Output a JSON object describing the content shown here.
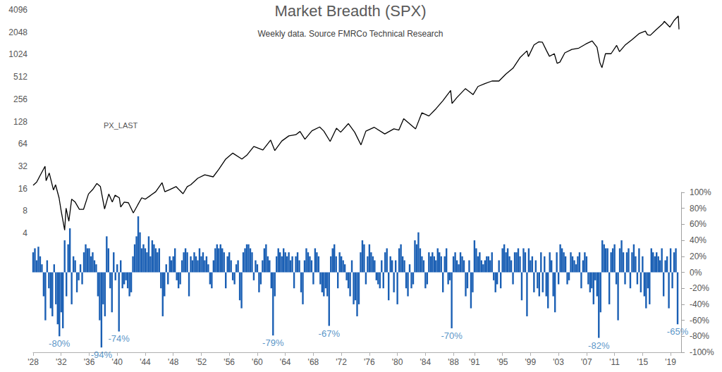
{
  "chart_data": {
    "type": "line",
    "title": "Market Breadth (SPX)",
    "subtitle": "Weekly data. Source FMRCo Technical Research",
    "log": "y",
    "grid": false,
    "xlim": [
      1928,
      2020.5
    ],
    "xticks": [
      {
        "value": 1928,
        "label": "'28"
      },
      {
        "value": 1932,
        "label": "'32"
      },
      {
        "value": 1936,
        "label": "'36"
      },
      {
        "value": 1940,
        "label": "'40"
      },
      {
        "value": 1944,
        "label": "'44"
      },
      {
        "value": 1948,
        "label": "'48"
      },
      {
        "value": 1952,
        "label": "'52"
      },
      {
        "value": 1956,
        "label": "'56"
      },
      {
        "value": 1960,
        "label": "'60"
      },
      {
        "value": 1964,
        "label": "'64"
      },
      {
        "value": 1968,
        "label": "'68"
      },
      {
        "value": 1972,
        "label": "'72"
      },
      {
        "value": 1976,
        "label": "'76"
      },
      {
        "value": 1980,
        "label": "'80"
      },
      {
        "value": 1984,
        "label": "'84"
      },
      {
        "value": 1988,
        "label": "'88"
      },
      {
        "value": 1991,
        "label": "'91"
      },
      {
        "value": 1995,
        "label": "'95"
      },
      {
        "value": 1999,
        "label": "'99"
      },
      {
        "value": 2003,
        "label": "'03"
      },
      {
        "value": 2007,
        "label": "'07"
      },
      {
        "value": 2011,
        "label": "'11"
      },
      {
        "value": 2015,
        "label": "'15"
      },
      {
        "value": 2019,
        "label": "'19"
      }
    ],
    "ylim": [
      4,
      4096
    ],
    "yticks": [
      4,
      8,
      16,
      32,
      64,
      128,
      256,
      512,
      1024,
      2048,
      4096
    ],
    "y2lim": [
      -100,
      100
    ],
    "y2ticks": [
      {
        "value": -100,
        "label": "-100%"
      },
      {
        "value": -80,
        "label": "-80%"
      },
      {
        "value": -60,
        "label": "-60%"
      },
      {
        "value": -40,
        "label": "-40%"
      },
      {
        "value": -20,
        "label": "-20%"
      },
      {
        "value": 0,
        "label": "0%"
      },
      {
        "value": 20,
        "label": "20%"
      },
      {
        "value": 40,
        "label": "40%"
      },
      {
        "value": 60,
        "label": "60%"
      },
      {
        "value": 80,
        "label": "80%"
      },
      {
        "value": 100,
        "label": "100%"
      }
    ],
    "annotations": [
      {
        "text": "-80%",
        "x": 1931.75,
        "value": -80
      },
      {
        "text": "-94%",
        "x": 1937.75,
        "value": -94
      },
      {
        "text": "-74%",
        "x": 1940.25,
        "value": -74
      },
      {
        "text": "-79%",
        "x": 1962.25,
        "value": -79
      },
      {
        "text": "-67%",
        "x": 1970.25,
        "value": -67
      },
      {
        "text": "-70%",
        "x": 1987.75,
        "value": -70
      },
      {
        "text": "-82%",
        "x": 2008.75,
        "value": -82
      },
      {
        "text": "-65%",
        "x": 2020,
        "value": -65
      }
    ],
    "series": [
      {
        "name": "PX_LAST",
        "type": "line",
        "color": "#000000",
        "x": [
          1928,
          1928.5,
          1929,
          1929.7,
          1929.85,
          1930.3,
          1930.9,
          1931.2,
          1931.7,
          1932,
          1932.5,
          1932.7,
          1933.1,
          1933.5,
          1934,
          1934.6,
          1935.2,
          1935.9,
          1936.5,
          1937.1,
          1937.6,
          1938.2,
          1938.8,
          1939.3,
          1939.7,
          1940.3,
          1940.5,
          1941,
          1941.6,
          1942.3,
          1942.9,
          1943.5,
          1944,
          1944.8,
          1945.5,
          1946.4,
          1946.8,
          1947.5,
          1948.4,
          1949.4,
          1950,
          1950.5,
          1951.5,
          1952.5,
          1953.7,
          1954.5,
          1955.5,
          1956.5,
          1957.8,
          1958.5,
          1959.5,
          1960.8,
          1961.9,
          1962.5,
          1963.5,
          1964.5,
          1965.5,
          1966.1,
          1966.8,
          1967.8,
          1968.9,
          1969.5,
          1970.4,
          1971.3,
          1971.9,
          1973,
          1973.9,
          1974.8,
          1975.5,
          1976.7,
          1978.2,
          1979.5,
          1980.2,
          1980.9,
          1982.6,
          1983.5,
          1984.5,
          1985.5,
          1986.5,
          1987.6,
          1987.8,
          1988.5,
          1989.7,
          1990.8,
          1991.5,
          1992.5,
          1993.5,
          1994.5,
          1995.5,
          1996.5,
          1997.5,
          1998.5,
          1998.7,
          1999.5,
          2000.2,
          2000.7,
          2001.3,
          2001.7,
          2002.4,
          2002.8,
          2003.2,
          2003.9,
          2004.9,
          2005.9,
          2006.9,
          2007.8,
          2008.5,
          2008.9,
          2009.2,
          2009.7,
          2010.5,
          2011.3,
          2011.7,
          2012.5,
          2013.5,
          2014.5,
          2015.4,
          2015.7,
          2016.1,
          2016.9,
          2017.9,
          2018.1,
          2018.9,
          2019.5,
          2020.1,
          2020.2
        ],
        "values": [
          17.7,
          19.5,
          24,
          31.9,
          20.4,
          25.9,
          15.3,
          18,
          12,
          8,
          4.4,
          8.7,
          5.8,
          11.5,
          10.5,
          8.4,
          8.4,
          13.5,
          15.5,
          18.7,
          17,
          8.5,
          13.5,
          10.5,
          13,
          12,
          9,
          10.5,
          10.3,
          7.5,
          9.5,
          12,
          11.5,
          13,
          14.5,
          19.2,
          14.5,
          15.5,
          17,
          13.6,
          17,
          18,
          22,
          24.5,
          23,
          29,
          40,
          48,
          40,
          45,
          59,
          53,
          72,
          52,
          70,
          82,
          85,
          94,
          74,
          96,
          108,
          95,
          69,
          104,
          92,
          120,
          92,
          62,
          95,
          107,
          87,
          102,
          98,
          140,
          102,
          168,
          152,
          190,
          245,
          336,
          224,
          270,
          355,
          295,
          380,
          415,
          450,
          450,
          560,
          670,
          930,
          1150,
          960,
          1380,
          1520,
          1500,
          1150,
          970,
          1050,
          780,
          810,
          1080,
          1200,
          1250,
          1420,
          1560,
          1280,
          800,
          680,
          1050,
          1050,
          1360,
          1120,
          1370,
          1630,
          1960,
          2120,
          1890,
          1860,
          2200,
          2670,
          2870,
          2400,
          2950,
          3380,
          2240
        ]
      },
      {
        "type": "bar",
        "axis": "y2",
        "color": "#1a5fb4",
        "x": [
          1928,
          1928.25,
          1928.5,
          1928.75,
          1929,
          1929.25,
          1929.5,
          1929.75,
          1930,
          1930.25,
          1930.5,
          1930.75,
          1931,
          1931.25,
          1931.5,
          1931.75,
          1932,
          1932.25,
          1932.5,
          1932.75,
          1933,
          1933.25,
          1933.5,
          1933.75,
          1934,
          1934.25,
          1934.5,
          1934.75,
          1935,
          1935.25,
          1935.5,
          1935.75,
          1936,
          1936.25,
          1936.5,
          1936.75,
          1937,
          1937.25,
          1937.5,
          1937.75,
          1938,
          1938.25,
          1938.5,
          1938.75,
          1939,
          1939.25,
          1939.5,
          1939.75,
          1940,
          1940.25,
          1940.5,
          1940.75,
          1941,
          1941.25,
          1941.5,
          1941.75,
          1942,
          1942.25,
          1942.5,
          1942.75,
          1943,
          1943.25,
          1943.5,
          1943.75,
          1944,
          1944.25,
          1944.5,
          1944.75,
          1945,
          1945.25,
          1945.5,
          1945.75,
          1946,
          1946.25,
          1946.5,
          1946.75,
          1947,
          1947.25,
          1947.5,
          1947.75,
          1948,
          1948.25,
          1948.5,
          1948.75,
          1949,
          1949.25,
          1949.5,
          1949.75,
          1950,
          1950.25,
          1950.5,
          1950.75,
          1951,
          1951.25,
          1951.5,
          1951.75,
          1952,
          1952.25,
          1952.5,
          1952.75,
          1953,
          1953.25,
          1953.5,
          1953.75,
          1954,
          1954.25,
          1954.5,
          1954.75,
          1955,
          1955.25,
          1955.5,
          1955.75,
          1956,
          1956.25,
          1956.5,
          1956.75,
          1957,
          1957.25,
          1957.5,
          1957.75,
          1958,
          1958.25,
          1958.5,
          1958.75,
          1959,
          1959.25,
          1959.5,
          1959.75,
          1960,
          1960.25,
          1960.5,
          1960.75,
          1961,
          1961.25,
          1961.5,
          1961.75,
          1962,
          1962.25,
          1962.5,
          1962.75,
          1963,
          1963.25,
          1963.5,
          1963.75,
          1964,
          1964.25,
          1964.5,
          1964.75,
          1965,
          1965.25,
          1965.5,
          1965.75,
          1966,
          1966.25,
          1966.5,
          1966.75,
          1967,
          1967.25,
          1967.5,
          1967.75,
          1968,
          1968.25,
          1968.5,
          1968.75,
          1969,
          1969.25,
          1969.5,
          1969.75,
          1970,
          1970.25,
          1970.5,
          1970.75,
          1971,
          1971.25,
          1971.5,
          1971.75,
          1972,
          1972.25,
          1972.5,
          1972.75,
          1973,
          1973.25,
          1973.5,
          1973.75,
          1974,
          1974.25,
          1974.5,
          1974.75,
          1975,
          1975.25,
          1975.5,
          1975.75,
          1976,
          1976.25,
          1976.5,
          1976.75,
          1977,
          1977.25,
          1977.5,
          1977.75,
          1978,
          1978.25,
          1978.5,
          1978.75,
          1979,
          1979.25,
          1979.5,
          1979.75,
          1980,
          1980.25,
          1980.5,
          1980.75,
          1981,
          1981.25,
          1981.5,
          1981.75,
          1982,
          1982.25,
          1982.5,
          1982.75,
          1983,
          1983.25,
          1983.5,
          1983.75,
          1984,
          1984.25,
          1984.5,
          1984.75,
          1985,
          1985.25,
          1985.5,
          1985.75,
          1986,
          1986.25,
          1986.5,
          1986.75,
          1987,
          1987.25,
          1987.5,
          1987.75,
          1988,
          1988.25,
          1988.5,
          1988.75,
          1989,
          1989.25,
          1989.5,
          1989.75,
          1990,
          1990.25,
          1990.5,
          1990.75,
          1991,
          1991.25,
          1991.5,
          1991.75,
          1992,
          1992.25,
          1992.5,
          1992.75,
          1993,
          1993.25,
          1993.5,
          1993.75,
          1994,
          1994.25,
          1994.5,
          1994.75,
          1995,
          1995.25,
          1995.5,
          1995.75,
          1996,
          1996.25,
          1996.5,
          1996.75,
          1997,
          1997.25,
          1997.5,
          1997.75,
          1998,
          1998.25,
          1998.5,
          1998.75,
          1999,
          1999.25,
          1999.5,
          1999.75,
          2000,
          2000.25,
          2000.5,
          2000.75,
          2001,
          2001.25,
          2001.5,
          2001.75,
          2002,
          2002.25,
          2002.5,
          2002.75,
          2003,
          2003.25,
          2003.5,
          2003.75,
          2004,
          2004.25,
          2004.5,
          2004.75,
          2005,
          2005.25,
          2005.5,
          2005.75,
          2006,
          2006.25,
          2006.5,
          2006.75,
          2007,
          2007.25,
          2007.5,
          2007.75,
          2008,
          2008.25,
          2008.5,
          2008.75,
          2009,
          2009.25,
          2009.5,
          2009.75,
          2010,
          2010.25,
          2010.5,
          2010.75,
          2011,
          2011.25,
          2011.5,
          2011.75,
          2012,
          2012.25,
          2012.5,
          2012.75,
          2013,
          2013.25,
          2013.5,
          2013.75,
          2014,
          2014.25,
          2014.5,
          2014.75,
          2015,
          2015.25,
          2015.5,
          2015.75,
          2016,
          2016.25,
          2016.5,
          2016.75,
          2017,
          2017.25,
          2017.5,
          2017.75,
          2018,
          2018.25,
          2018.5,
          2018.75,
          2019,
          2019.25,
          2019.5,
          2019.75,
          2020
        ],
        "values": [
          25,
          30,
          15,
          32,
          20,
          10,
          -30,
          -60,
          15,
          -20,
          -45,
          -55,
          10,
          -40,
          -65,
          -80,
          -50,
          -70,
          40,
          -30,
          35,
          55,
          -40,
          20,
          15,
          -25,
          -10,
          10,
          -15,
          25,
          35,
          30,
          30,
          20,
          25,
          15,
          10,
          -30,
          -60,
          -94,
          -40,
          -55,
          45,
          30,
          -20,
          -50,
          25,
          -10,
          10,
          -74,
          15,
          -20,
          -15,
          -10,
          -20,
          -30,
          -25,
          20,
          35,
          45,
          70,
          50,
          30,
          35,
          30,
          25,
          45,
          20,
          40,
          35,
          30,
          25,
          30,
          -20,
          -55,
          -30,
          10,
          -15,
          20,
          15,
          20,
          30,
          -10,
          -20,
          -15,
          15,
          25,
          30,
          25,
          -30,
          20,
          15,
          25,
          20,
          15,
          30,
          20,
          25,
          15,
          20,
          10,
          -15,
          -20,
          15,
          30,
          35,
          30,
          35,
          30,
          25,
          -20,
          20,
          25,
          15,
          -10,
          -15,
          10,
          15,
          -35,
          -45,
          25,
          30,
          35,
          35,
          30,
          25,
          -10,
          15,
          10,
          -25,
          -15,
          15,
          30,
          35,
          20,
          15,
          -20,
          -79,
          -30,
          20,
          30,
          25,
          20,
          30,
          25,
          20,
          25,
          15,
          20,
          -20,
          20,
          25,
          15,
          -25,
          -40,
          15,
          30,
          25,
          20,
          15,
          -15,
          30,
          25,
          20,
          -15,
          -25,
          -30,
          -20,
          -30,
          -67,
          20,
          30,
          35,
          20,
          -20,
          25,
          20,
          15,
          10,
          -10,
          -20,
          -30,
          15,
          -40,
          -35,
          -55,
          -40,
          25,
          40,
          35,
          -15,
          20,
          35,
          25,
          20,
          15,
          -10,
          -15,
          -20,
          15,
          -20,
          25,
          30,
          -35,
          20,
          15,
          -25,
          15,
          -40,
          30,
          35,
          20,
          15,
          -20,
          -30,
          10,
          -20,
          -15,
          40,
          35,
          50,
          30,
          20,
          15,
          -20,
          -15,
          25,
          20,
          25,
          20,
          15,
          30,
          25,
          20,
          -25,
          20,
          30,
          -15,
          -10,
          -70,
          20,
          25,
          15,
          10,
          25,
          20,
          15,
          -30,
          -20,
          15,
          -45,
          -25,
          40,
          30,
          20,
          25,
          15,
          10,
          15,
          20,
          20,
          15,
          25,
          -10,
          -25,
          -15,
          15,
          -20,
          30,
          35,
          25,
          30,
          20,
          15,
          -15,
          25,
          25,
          30,
          20,
          -35,
          30,
          25,
          -55,
          30,
          15,
          20,
          -25,
          15,
          -20,
          -30,
          25,
          -25,
          20,
          -30,
          -45,
          25,
          15,
          -30,
          -50,
          25,
          -15,
          35,
          30,
          25,
          20,
          -15,
          -10,
          25,
          20,
          15,
          10,
          20,
          25,
          -20,
          15,
          25,
          20,
          -15,
          -25,
          -20,
          -40,
          -10,
          -30,
          -82,
          -50,
          40,
          35,
          30,
          30,
          -40,
          25,
          30,
          35,
          -15,
          -60,
          30,
          40,
          25,
          -15,
          25,
          30,
          -20,
          25,
          35,
          20,
          -15,
          30,
          -25,
          20,
          -30,
          -45,
          -20,
          -40,
          30,
          25,
          20,
          25,
          20,
          15,
          30,
          -30,
          15,
          20,
          -45,
          30,
          -20,
          25,
          30,
          -65
        ]
      }
    ]
  }
}
